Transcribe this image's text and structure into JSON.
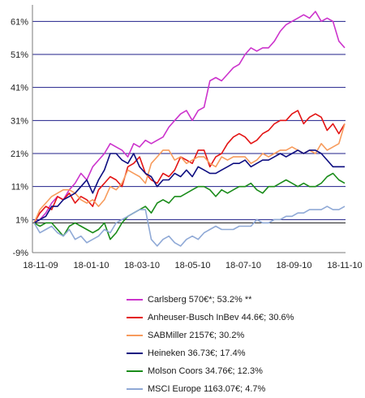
{
  "chart_data": {
    "type": "line",
    "x_ticks": [
      "18-11-09",
      "18-01-10",
      "18-03-10",
      "18-05-10",
      "18-07-10",
      "18-09-10",
      "18-11-10"
    ],
    "y_ticks": [
      "61%",
      "51%",
      "41%",
      "31%",
      "21%",
      "11%",
      "1%",
      "-9%"
    ],
    "ylim": [
      -9,
      66
    ],
    "grid": "horizontal",
    "legend_position": "bottom",
    "series": [
      {
        "name": "Carlsberg  570€*; 53.2% **",
        "color": "#cc33cc",
        "values": [
          0,
          1,
          3,
          6,
          8,
          7,
          10,
          12,
          15,
          13,
          17,
          19,
          21,
          24,
          23,
          22,
          20,
          24,
          23,
          25,
          24,
          25,
          26,
          29,
          31,
          33,
          34,
          31,
          34,
          35,
          43,
          44,
          43,
          45,
          47,
          48,
          51,
          53,
          52,
          53,
          53,
          55,
          58,
          60,
          61,
          62,
          63,
          62,
          64,
          61,
          62,
          61,
          55,
          53
        ]
      },
      {
        "name": "Anheuser-Busch InBev  44.6€; 30.6%",
        "color": "#e31414",
        "values": [
          0,
          3,
          5,
          4,
          8,
          7,
          9,
          6,
          8,
          7,
          5,
          10,
          12,
          14,
          13,
          11,
          17,
          18,
          20,
          15,
          13,
          12,
          15,
          14,
          16,
          20,
          19,
          18,
          22,
          22,
          17,
          20,
          21,
          24,
          26,
          27,
          26,
          24,
          25,
          27,
          28,
          30,
          31,
          31,
          33,
          34,
          30,
          32,
          33,
          32,
          28,
          30,
          27,
          30
        ]
      },
      {
        "name": "SABMiller  2157€; 30.2%",
        "color": "#f79b5c",
        "values": [
          0,
          4,
          6,
          8,
          9,
          10,
          10,
          9,
          7,
          6,
          7,
          5,
          7,
          11,
          10,
          12,
          16,
          15,
          14,
          12,
          18,
          20,
          22,
          22,
          19,
          20,
          18,
          19,
          20,
          20,
          18,
          17,
          20,
          19,
          20,
          20,
          20,
          18,
          19,
          21,
          20,
          21,
          22,
          22,
          23,
          22,
          21,
          22,
          21,
          24,
          22,
          23,
          24,
          30
        ]
      },
      {
        "name": "Heineken  36.73€; 17.4%",
        "color": "#0d0d80",
        "values": [
          0,
          1,
          2,
          5,
          5,
          7,
          8,
          9,
          11,
          13,
          9,
          13,
          16,
          21,
          21,
          19,
          18,
          21,
          17,
          15,
          14,
          11,
          13,
          13,
          15,
          14,
          16,
          14,
          17,
          16,
          15,
          15,
          16,
          17,
          18,
          18,
          19,
          17,
          18,
          19,
          19,
          20,
          21,
          20,
          21,
          22,
          21,
          22,
          22,
          21,
          19,
          17,
          17,
          17
        ]
      },
      {
        "name": "Molson Coors  34.76€; 12.3%",
        "color": "#1a8c1a",
        "values": [
          0,
          -1,
          0,
          0,
          -2,
          -4,
          -1,
          0,
          -1,
          -2,
          -3,
          -2,
          0,
          -5,
          -3,
          0,
          2,
          3,
          4,
          5,
          3,
          6,
          7,
          6,
          8,
          8,
          9,
          10,
          11,
          11,
          10,
          8,
          10,
          9,
          10,
          11,
          11,
          12,
          10,
          9,
          11,
          11,
          12,
          13,
          12,
          11,
          12,
          11,
          11,
          12,
          14,
          15,
          13,
          12
        ]
      },
      {
        "name": "MSCI Europe  1163.07€; 4.7%",
        "color": "#8fa9d6",
        "values": [
          0,
          -3,
          -2,
          -1,
          -3,
          -4,
          -2,
          -5,
          -4,
          -6,
          -5,
          -4,
          -2,
          -3,
          0,
          1,
          2,
          3,
          4,
          4,
          -5,
          -7,
          -5,
          -4,
          -6,
          -7,
          -5,
          -4,
          -5,
          -3,
          -2,
          -1,
          -2,
          -2,
          -2,
          -1,
          -1,
          -1,
          1,
          0,
          0,
          1,
          1,
          2,
          2,
          3,
          3,
          4,
          4,
          4,
          5,
          4,
          4,
          5
        ]
      }
    ]
  }
}
